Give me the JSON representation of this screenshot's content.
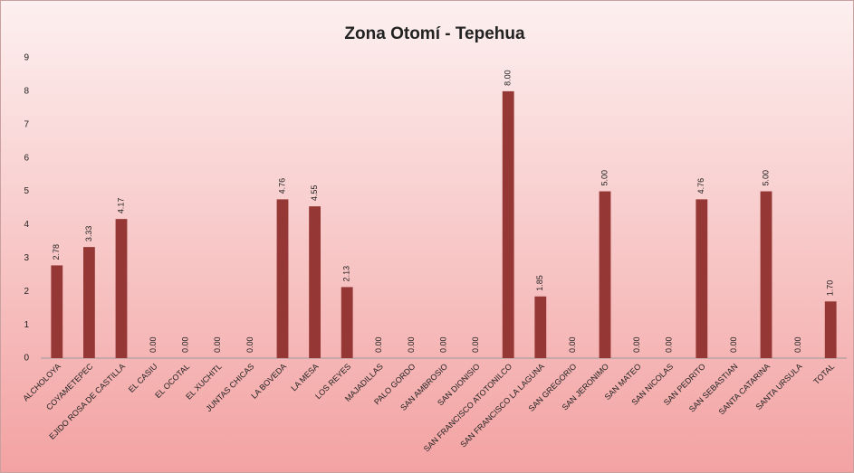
{
  "chart_data": {
    "type": "bar",
    "title": "Zona Otomí - Tepehua",
    "categories": [
      "ALCHOLOYA",
      "COYAMETEPEC",
      "EJIDO ROSA DE CASTILLA",
      "EL CASIU",
      "EL OCOTAL",
      "EL XUCHITL",
      "JUNTAS CHICAS",
      "LA BOVEDA",
      "LA MESA",
      "LOS REYES",
      "MAJADILLAS",
      "PALO GORDO",
      "SAN AMBROSIO",
      "SAN DIONISIO",
      "SAN FRANCISCO ATOTONILCO",
      "SAN FRANCISCO LA LAGUNA",
      "SAN GREGORIO",
      "SAN JERONIMO",
      "SAN MATEO",
      "SAN NICOLAS",
      "SAN PEDRITO",
      "SAN SEBASTIAN",
      "SANTA CATARINA",
      "SANTA URSULA",
      "TOTAL"
    ],
    "values": [
      2.78,
      3.33,
      4.17,
      0,
      0,
      0,
      0,
      4.76,
      4.55,
      2.13,
      0,
      0,
      0,
      0,
      8,
      1.85,
      0,
      5,
      0,
      0,
      4.76,
      0,
      5,
      0,
      1.7
    ],
    "value_labels": [
      "2.78",
      "3.33",
      "4.17",
      "0.00",
      "0.00",
      "0.00",
      "0.00",
      "4.76",
      "4.55",
      "2.13",
      "0.00",
      "0.00",
      "0.00",
      "0.00",
      "8.00",
      "1.85",
      "0.00",
      "5.00",
      "0.00",
      "0.00",
      "4.76",
      "0.00",
      "5.00",
      "0.00",
      "1.70"
    ],
    "color": "#953735",
    "ylim": [
      0,
      9
    ],
    "yticks": [
      0,
      1,
      2,
      3,
      4,
      5,
      6,
      7,
      8,
      9
    ],
    "grid": false
  }
}
